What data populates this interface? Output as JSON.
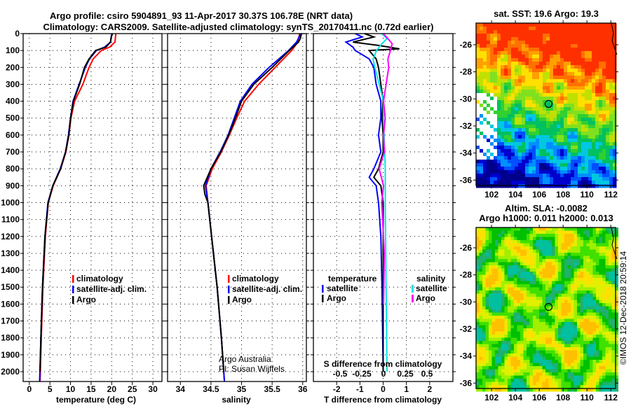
{
  "header": {
    "title_line1": "Argo profile: csiro 5904891_93 11-Apr-2017 30.37S 106.78E (NRT data)",
    "title_line2": "Climatology: CARS2009. Satellite-adjusted climatology: synTS_20170411.nc (0.72d earlier)"
  },
  "credits": {
    "line1": "Argo Australia",
    "line2": "PI: Susan Wijffels",
    "timestamp": "©IMOS 12-Dec-2018 20:59:14"
  },
  "colors": {
    "climatology": "#ff0000",
    "satellite": "#0000ff",
    "argo": "#000000",
    "sal_satellite": "#00e5e5",
    "sal_argo": "#ff00ff"
  },
  "chart_data": [
    {
      "type": "line",
      "title": "",
      "xlabel": "temperature (deg C)",
      "ylabel": "",
      "xlim": [
        -1.5,
        32.2
      ],
      "ylim": [
        2058,
        0
      ],
      "xticks": [
        0,
        5,
        10,
        15,
        20,
        25,
        30
      ],
      "yticks": [
        0,
        100,
        200,
        300,
        400,
        500,
        600,
        700,
        800,
        900,
        1000,
        1100,
        1200,
        1300,
        1400,
        1500,
        1600,
        1700,
        1800,
        1900,
        2000
      ],
      "grid": true,
      "legend": [
        "climatology",
        "satellite-adj. clim.",
        "Argo"
      ],
      "series": [
        {
          "name": "climatology",
          "color": "#ff0000",
          "depth": [
            0,
            50,
            80,
            100,
            150,
            200,
            300,
            400,
            500,
            600,
            700,
            800,
            900,
            1000,
            1200,
            1500,
            1800,
            2058
          ],
          "values": [
            21,
            20.8,
            19.5,
            17.5,
            15.5,
            14.5,
            13,
            11,
            10.1,
            9.6,
            8.9,
            7.6,
            5.8,
            4.6,
            3.9,
            3.3,
            2.9,
            2.6
          ]
        },
        {
          "name": "satellite-adj. clim.",
          "color": "#0000ff",
          "depth": [
            0,
            50,
            80,
            100,
            150,
            200,
            300,
            400,
            500,
            600,
            700,
            800,
            900,
            1000,
            1200,
            1500,
            1800,
            2058
          ],
          "values": [
            20,
            19.7,
            18.3,
            16.3,
            14.6,
            13.6,
            12.1,
            10.6,
            10,
            9.5,
            8.8,
            7.5,
            5.7,
            4.5,
            3.8,
            3.2,
            2.8,
            2.5
          ]
        },
        {
          "name": "Argo",
          "color": "#000000",
          "depth": [
            0,
            20,
            50,
            80,
            100,
            150,
            200,
            300,
            400,
            500,
            600,
            700,
            800,
            900,
            1000,
            1200,
            1500,
            1800,
            2000
          ],
          "values": [
            20.2,
            19.9,
            19.7,
            18.6,
            16.1,
            14.5,
            13.4,
            12.2,
            10.7,
            10,
            9.6,
            8.8,
            7.6,
            5.7,
            4.6,
            3.8,
            3.2,
            2.8,
            2.6
          ]
        }
      ]
    },
    {
      "type": "line",
      "xlabel": "salinity",
      "xlim": [
        33.79,
        36.06
      ],
      "ylim": [
        2058,
        0
      ],
      "xticks": [
        34,
        34.5,
        35,
        35.5,
        36
      ],
      "grid": true,
      "legend": [
        "climatology",
        "satellite-adj. clim.",
        "Argo"
      ],
      "series": [
        {
          "name": "climatology",
          "color": "#ff0000",
          "depth": [
            0,
            50,
            100,
            200,
            300,
            400,
            500,
            600,
            700,
            800,
            900,
            1000,
            1200,
            1500,
            1800,
            2058
          ],
          "values": [
            35.95,
            35.92,
            35.82,
            35.55,
            35.28,
            35.05,
            34.92,
            34.8,
            34.67,
            34.52,
            34.42,
            34.45,
            34.51,
            34.6,
            34.67,
            34.72
          ]
        },
        {
          "name": "satellite-adj. clim.",
          "color": "#0000ff",
          "depth": [
            0,
            50,
            100,
            200,
            300,
            400,
            500,
            600,
            700,
            800,
            900,
            1000,
            1200,
            1500,
            1800,
            2058
          ],
          "values": [
            35.97,
            35.9,
            35.77,
            35.45,
            35.17,
            34.98,
            34.88,
            34.78,
            34.65,
            34.5,
            34.41,
            34.45,
            34.51,
            34.6,
            34.67,
            34.72
          ]
        },
        {
          "name": "Argo",
          "color": "#000000",
          "depth": [
            0,
            30,
            50,
            100,
            200,
            300,
            400,
            500,
            600,
            700,
            800,
            900,
            950,
            1000,
            1200,
            1500,
            1800,
            2000
          ],
          "values": [
            35.98,
            35.96,
            35.93,
            35.78,
            35.5,
            35.2,
            35.0,
            34.9,
            34.79,
            34.66,
            34.5,
            34.38,
            34.4,
            34.45,
            34.51,
            34.6,
            34.67,
            34.71
          ]
        }
      ]
    },
    {
      "type": "line",
      "xlabel": "T difference from climatology",
      "xlabel2": "S difference from climatology",
      "xlim": [
        -3,
        3
      ],
      "ylim": [
        2058,
        0
      ],
      "xticks": [
        -2,
        -1,
        0,
        1,
        2
      ],
      "xticks2": [
        -0.5,
        -0.25,
        0,
        0.25,
        0.5
      ],
      "grid": true,
      "legend_temperature": {
        "title": "temperature",
        "items": [
          "satellite",
          "Argo"
        ]
      },
      "legend_salinity": {
        "title": "salinity",
        "items": [
          "satellite",
          "Argo"
        ]
      },
      "series": [
        {
          "name": "temperature satellite",
          "color": "#0000ff",
          "depth": [
            0,
            20,
            50,
            80,
            100,
            150,
            200,
            300,
            400,
            500,
            600,
            700,
            800,
            850,
            900,
            1000,
            1200,
            1500,
            2000
          ],
          "values": [
            -1.2,
            -0.9,
            -1.6,
            -1.3,
            -1.2,
            -0.6,
            -0.4,
            -0.3,
            -0.1,
            -0.1,
            -0.2,
            -0.1,
            -0.4,
            -0.6,
            -0.3,
            -0.2,
            -0.1,
            -0.05,
            0
          ]
        },
        {
          "name": "temperature Argo",
          "color": "#000000",
          "depth": [
            0,
            20,
            50,
            70,
            90,
            100,
            150,
            200,
            300,
            400,
            500,
            600,
            700,
            800,
            850,
            900,
            1000,
            1200,
            1500,
            2000
          ],
          "values": [
            -0.8,
            -0.4,
            -1.3,
            -0.2,
            0.7,
            -0.6,
            -0.3,
            -0.2,
            -0.1,
            0,
            -0.05,
            0,
            0,
            -0.2,
            -0.4,
            -0.1,
            0,
            0,
            0,
            0
          ]
        },
        {
          "name": "salinity satellite",
          "color": "#00e5e5",
          "depth": [
            0,
            30,
            60,
            100,
            150,
            200,
            300,
            400,
            500,
            800,
            1000,
            1500,
            2000
          ],
          "values": [
            -0.02,
            0.04,
            -0.02,
            -0.08,
            -0.12,
            -0.1,
            -0.05,
            0,
            0,
            0.02,
            0.02,
            0.03,
            0.04
          ]
        },
        {
          "name": "salinity Argo",
          "color": "#ff00ff",
          "depth": [
            0,
            30,
            60,
            100,
            150,
            200,
            300,
            400,
            500,
            600,
            700,
            800,
            900,
            1000,
            1300,
            1600
          ],
          "values": [
            0,
            0.05,
            0.1,
            0.08,
            0.05,
            0.06,
            0.03,
            0,
            0.02,
            0,
            0.01,
            -0.05,
            0,
            -0.02,
            0.01,
            0
          ]
        }
      ]
    },
    {
      "type": "heatmap",
      "title": "sat. SST: 19.6 Argo: 19.3",
      "xlim": [
        100.7,
        112.4
      ],
      "ylim": [
        -36.4,
        -24.4
      ],
      "xticks": [
        102,
        104,
        106,
        108,
        110,
        112
      ],
      "yticks": [
        -26,
        -28,
        -30,
        -32,
        -34,
        -36
      ],
      "marker": {
        "lon": 106.78,
        "lat": -30.37
      }
    },
    {
      "type": "heatmap",
      "title": "Altim. SLA: -0.0082",
      "subtitle": "Argo h1000: 0.011 h2000: 0.013",
      "xlim": [
        100.7,
        112.4
      ],
      "ylim": [
        -36.4,
        -24.5
      ],
      "xticks": [
        102,
        104,
        106,
        108,
        110,
        112
      ],
      "yticks": [
        -26,
        -28,
        -30,
        -32,
        -34,
        -36
      ],
      "marker": {
        "lon": 106.78,
        "lat": -30.37
      }
    }
  ]
}
